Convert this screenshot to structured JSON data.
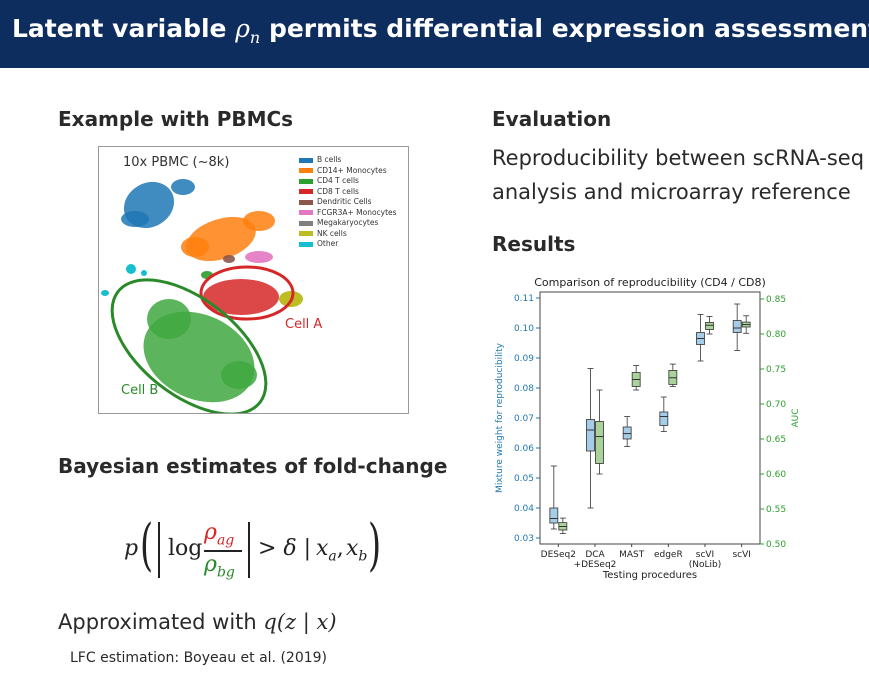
{
  "header": {
    "title_prefix": "Latent variable ",
    "title_symbol": "ρ",
    "title_subscript": "n",
    "title_suffix": " permits differential expression assessment"
  },
  "left": {
    "example_heading": "Example with PBMCs",
    "tsne": {
      "title": "10x PBMC (~8k)",
      "legend": [
        {
          "label": "B cells",
          "color": "#1f77b4"
        },
        {
          "label": "CD14+ Monocytes",
          "color": "#ff7f0e"
        },
        {
          "label": "CD4 T cells",
          "color": "#2ca02c"
        },
        {
          "label": "CD8 T cells",
          "color": "#d62728"
        },
        {
          "label": "Dendritic Cells",
          "color": "#8c564b"
        },
        {
          "label": "FCGR3A+ Monocytes",
          "color": "#e377c2"
        },
        {
          "label": "Megakaryocytes",
          "color": "#7f7f7f"
        },
        {
          "label": "NK cells",
          "color": "#bcbd22"
        },
        {
          "label": "Other",
          "color": "#17becf"
        }
      ],
      "cell_a_label": "Cell A",
      "cell_b_label": "Cell B",
      "cell_a_color": "#d62728",
      "cell_b_color": "#2a8a2a"
    },
    "bayes_heading": "Bayesian estimates of fold-change",
    "formula": {
      "p": "p",
      "log": "log",
      "rho": "ρ",
      "sub_ag": "ag",
      "sub_bg": "bg",
      "gt_delta": "> δ |",
      "xa": "x",
      "sub_a": "a",
      "comma": ",",
      "xb": "x",
      "sub_b": "b",
      "num_color": "#d62728",
      "den_color": "#2a8a2a"
    },
    "approx_prefix": "Approximated with ",
    "approx_math": "q(z | x)",
    "citation": "LFC estimation: Boyeau et al. (2019)"
  },
  "right": {
    "eval_heading": "Evaluation",
    "eval_line1": "Reproducibility between scRNA-seq",
    "eval_line2": "analysis and microarray reference",
    "results_heading": "Results"
  },
  "chart_data": {
    "type": "box",
    "title": "Comparison of reproducibility (CD4 / CD8)",
    "xlabel": "Testing procedures",
    "ylabel_left": "Mixture weight for reproducibility",
    "ylabel_right": "AUC",
    "ylim_left": [
      0.028,
      0.112
    ],
    "ylim_right": [
      0.5,
      0.86
    ],
    "yticks_left": [
      "0.03",
      "0.04",
      "0.05",
      "0.06",
      "0.07",
      "0.08",
      "0.09",
      "0.10",
      "0.11"
    ],
    "yticks_right": [
      "0.50",
      "0.55",
      "0.60",
      "0.65",
      "0.70",
      "0.75",
      "0.80",
      "0.85"
    ],
    "left_color": "#1f77b4",
    "right_color": "#2ca02c",
    "categories": [
      "DESeq2",
      "DCA\n+DESeq2",
      "MAST",
      "edgeR",
      "scVI\n(NoLib)",
      "scVI"
    ],
    "series": [
      {
        "name": "Mixture weight",
        "axis": "left",
        "boxes": [
          {
            "whislo": 0.033,
            "q1": 0.035,
            "med": 0.0365,
            "q3": 0.04,
            "whishi": 0.054
          },
          {
            "whislo": 0.04,
            "q1": 0.059,
            "med": 0.066,
            "q3": 0.0695,
            "whishi": 0.0865
          },
          {
            "whislo": 0.0605,
            "q1": 0.063,
            "med": 0.0648,
            "q3": 0.067,
            "whishi": 0.0705
          },
          {
            "whislo": 0.0655,
            "q1": 0.0675,
            "med": 0.0705,
            "q3": 0.072,
            "whishi": 0.077
          },
          {
            "whislo": 0.089,
            "q1": 0.0945,
            "med": 0.0965,
            "q3": 0.0985,
            "whishi": 0.1045
          },
          {
            "whislo": 0.0925,
            "q1": 0.0985,
            "med": 0.1,
            "q3": 0.1025,
            "whishi": 0.108
          }
        ]
      },
      {
        "name": "AUC",
        "axis": "right",
        "boxes": [
          {
            "whislo": 0.515,
            "q1": 0.52,
            "med": 0.525,
            "q3": 0.5305,
            "whishi": 0.537
          },
          {
            "whislo": 0.6,
            "q1": 0.615,
            "med": 0.6535,
            "q3": 0.675,
            "whishi": 0.72
          },
          {
            "whislo": 0.72,
            "q1": 0.725,
            "med": 0.735,
            "q3": 0.745,
            "whishi": 0.755
          },
          {
            "whislo": 0.725,
            "q1": 0.728,
            "med": 0.7375,
            "q3": 0.748,
            "whishi": 0.757
          },
          {
            "whislo": 0.8,
            "q1": 0.8065,
            "med": 0.8125,
            "q3": 0.8165,
            "whishi": 0.825
          },
          {
            "whislo": 0.801,
            "q1": 0.81,
            "med": 0.8135,
            "q3": 0.817,
            "whishi": 0.826
          }
        ]
      }
    ]
  }
}
